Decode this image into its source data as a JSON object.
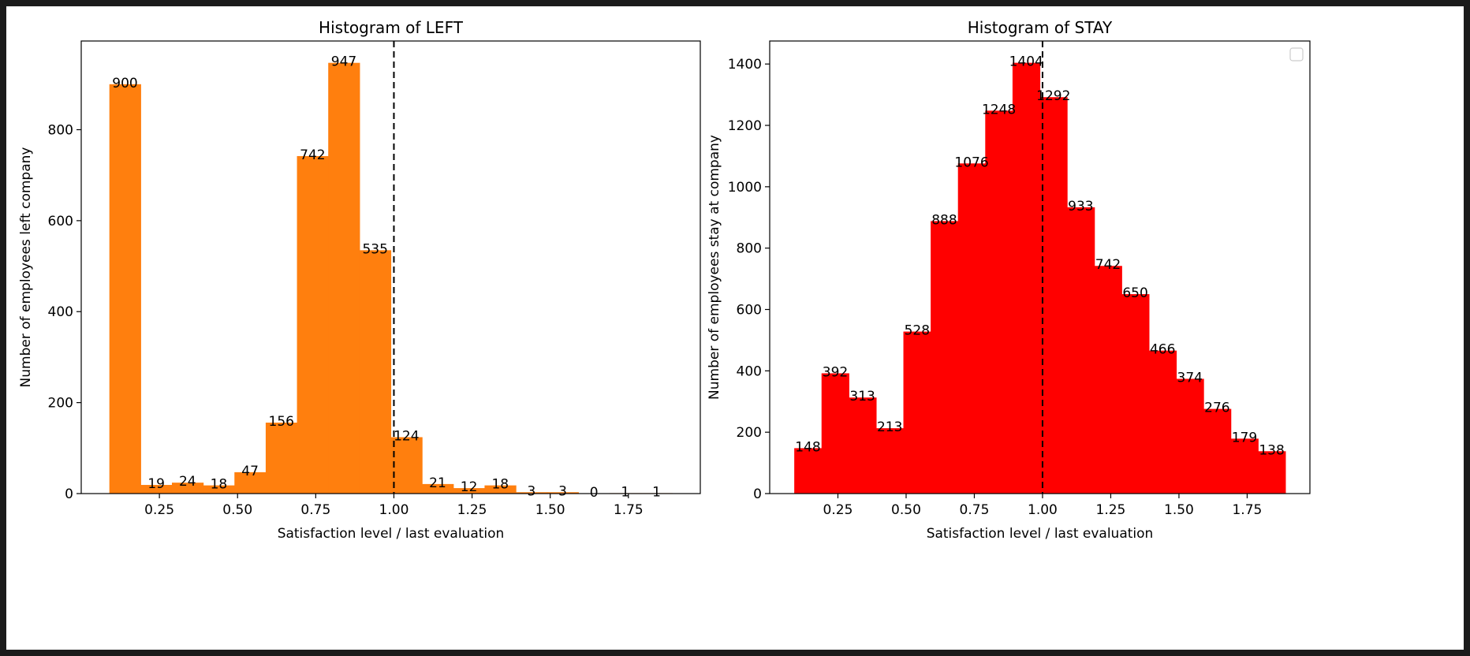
{
  "chart_data": [
    {
      "type": "bar",
      "title": "Histogram of LEFT",
      "xlabel": "Satisfaction level / last evaluation",
      "ylabel": "Number of employees left company",
      "color": "#ff7f0e",
      "bin_edges": [
        0.09,
        0.19,
        0.29,
        0.39,
        0.49,
        0.59,
        0.69,
        0.79,
        0.89,
        0.99,
        1.09,
        1.19,
        1.29,
        1.39,
        1.49,
        1.59,
        1.69,
        1.79,
        1.89
      ],
      "values": [
        900,
        19,
        24,
        18,
        47,
        156,
        742,
        947,
        535,
        124,
        21,
        12,
        18,
        3,
        3,
        0,
        1,
        1
      ],
      "value_labels": [
        "900",
        "19",
        "24",
        "18",
        "47",
        "156",
        "742",
        "947",
        "535",
        "124",
        "21",
        "12",
        "18",
        "3",
        "3",
        "0",
        "1",
        "1"
      ],
      "xlim": [
        0.0,
        1.98
      ],
      "ylim": [
        0,
        995
      ],
      "x_ticks": [
        0.25,
        0.5,
        0.75,
        1.0,
        1.25,
        1.5,
        1.75
      ],
      "x_tick_labels": [
        "0.25",
        "0.50",
        "0.75",
        "1.00",
        "1.25",
        "1.50",
        "1.75"
      ],
      "y_ticks": [
        0,
        200,
        400,
        600,
        800
      ],
      "y_tick_labels": [
        "0",
        "200",
        "400",
        "600",
        "800"
      ],
      "reference_line_x": 1.0,
      "legend": false,
      "grid": false
    },
    {
      "type": "bar",
      "title": "Histogram of STAY",
      "xlabel": "Satisfaction level / last evaluation",
      "ylabel": "Number of employees stay at company",
      "color": "#ff0000",
      "bin_edges": [
        0.09,
        0.19,
        0.29,
        0.39,
        0.49,
        0.59,
        0.69,
        0.79,
        0.89,
        0.99,
        1.09,
        1.19,
        1.29,
        1.39,
        1.49,
        1.59,
        1.69,
        1.79,
        1.89
      ],
      "values": [
        148,
        392,
        313,
        213,
        528,
        888,
        1076,
        1248,
        1404,
        1292,
        933,
        742,
        650,
        466,
        374,
        276,
        179,
        138
      ],
      "value_labels": [
        "148",
        "392",
        "313",
        "213",
        "528",
        "888",
        "1076",
        "1248",
        "1404",
        "1292",
        "933",
        "742",
        "650",
        "466",
        "374",
        "276",
        "179",
        "138"
      ],
      "xlim": [
        0.0,
        1.98
      ],
      "ylim": [
        0,
        1475
      ],
      "x_ticks": [
        0.25,
        0.5,
        0.75,
        1.0,
        1.25,
        1.5,
        1.75
      ],
      "x_tick_labels": [
        "0.25",
        "0.50",
        "0.75",
        "1.00",
        "1.25",
        "1.50",
        "1.75"
      ],
      "y_ticks": [
        0,
        200,
        400,
        600,
        800,
        1000,
        1200,
        1400
      ],
      "y_tick_labels": [
        "0",
        "200",
        "400",
        "600",
        "800",
        "1000",
        "1200",
        "1400"
      ],
      "reference_line_x": 1.0,
      "legend": "top-right (empty)",
      "grid": false
    }
  ]
}
